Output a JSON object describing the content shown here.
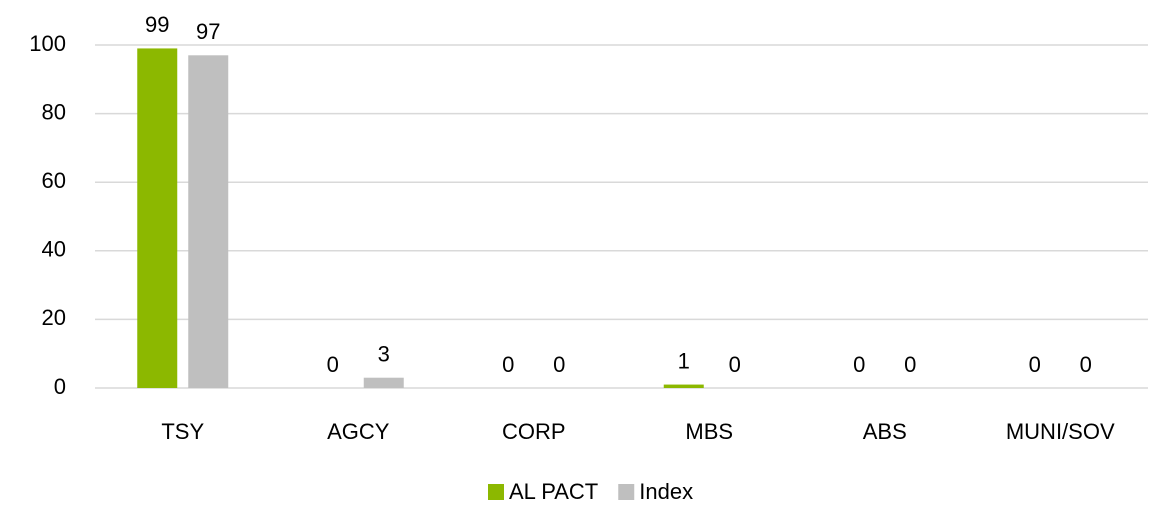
{
  "chart_data": {
    "type": "bar",
    "categories": [
      "TSY",
      "AGCY",
      "CORP",
      "MBS",
      "ABS",
      "MUNI/SOV"
    ],
    "series": [
      {
        "name": "AL PACT",
        "color": "#8cb800",
        "values": [
          99,
          0,
          0,
          1,
          0,
          0
        ]
      },
      {
        "name": "Index",
        "color": "#bfbfbf",
        "values": [
          97,
          3,
          0,
          0,
          0,
          0
        ]
      }
    ],
    "ylim": [
      0,
      100
    ],
    "yticks": [
      0,
      20,
      40,
      60,
      80,
      100
    ],
    "grid": true,
    "legend": "bottom"
  }
}
